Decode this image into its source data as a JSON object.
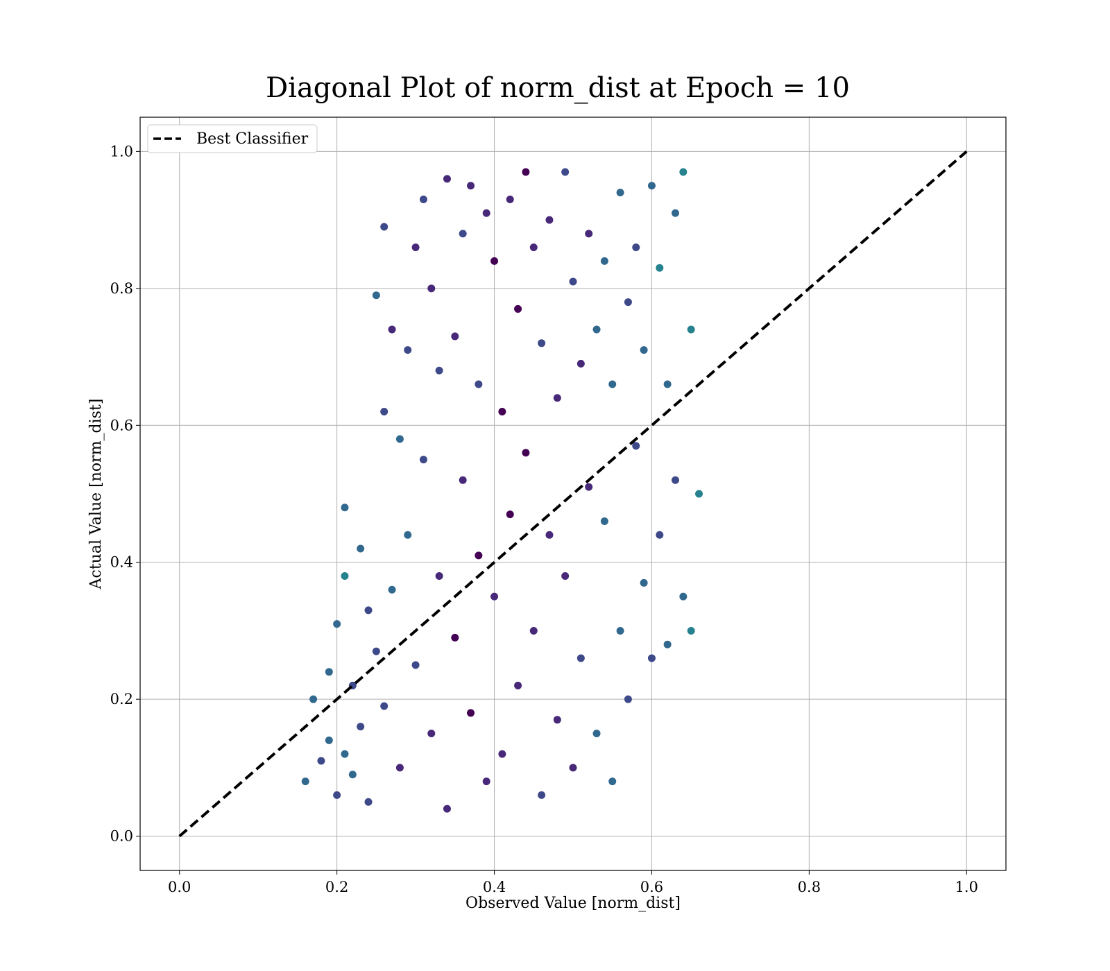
{
  "chart_data": {
    "type": "scatter",
    "title": "Diagonal Plot of norm_dist at Epoch = 10",
    "xlabel": "Observed Value [norm_dist]",
    "ylabel": "Actual Value [norm_dist]",
    "xlim": [
      -0.05,
      1.05
    ],
    "ylim": [
      -0.05,
      1.05
    ],
    "xticks": [
      "0.0",
      "0.2",
      "0.4",
      "0.6",
      "0.8",
      "1.0"
    ],
    "yticks": [
      "0.0",
      "0.2",
      "0.4",
      "0.6",
      "0.8",
      "1.0"
    ],
    "xtick_values": [
      0.0,
      0.2,
      0.4,
      0.6,
      0.8,
      1.0
    ],
    "ytick_values": [
      0.0,
      0.2,
      0.4,
      0.6,
      0.8,
      1.0
    ],
    "grid": true,
    "legend": {
      "placement": "top-left",
      "entries": [
        {
          "label": "Best Classifier",
          "style": "dashed",
          "color": "#000000"
        }
      ]
    },
    "reference_line": {
      "name": "Best Classifier",
      "x": [
        0.0,
        1.0
      ],
      "y": [
        0.0,
        1.0
      ],
      "style": "dashed",
      "color": "#000000"
    },
    "colormap": "viridis",
    "color_palette": [
      "#440154",
      "#482878",
      "#3e4989",
      "#31688e",
      "#26828e",
      "#1f9e89",
      "#35b779",
      "#6ece58",
      "#b5de2b",
      "#fde725"
    ],
    "series": [
      {
        "x": [
          0.16,
          0.17,
          0.18,
          0.19,
          0.19,
          0.2,
          0.2,
          0.21,
          0.21,
          0.21,
          0.22,
          0.22,
          0.23,
          0.23,
          0.24,
          0.24,
          0.25,
          0.25,
          0.26,
          0.26,
          0.26,
          0.27,
          0.27,
          0.28,
          0.28,
          0.29,
          0.29,
          0.3,
          0.3,
          0.31,
          0.31,
          0.32,
          0.32,
          0.33,
          0.33,
          0.34,
          0.34,
          0.35,
          0.35,
          0.36,
          0.36,
          0.37,
          0.37,
          0.38,
          0.38,
          0.39,
          0.39,
          0.4,
          0.4,
          0.41,
          0.41,
          0.42,
          0.42,
          0.43,
          0.43,
          0.44,
          0.44,
          0.45,
          0.45,
          0.46,
          0.46,
          0.47,
          0.47,
          0.48,
          0.48,
          0.49,
          0.49,
          0.5,
          0.5,
          0.51,
          0.51,
          0.52,
          0.52,
          0.53,
          0.53,
          0.54,
          0.54,
          0.55,
          0.55,
          0.56,
          0.56,
          0.57,
          0.57,
          0.58,
          0.58,
          0.59,
          0.59,
          0.6,
          0.6,
          0.61,
          0.61,
          0.62,
          0.62,
          0.63,
          0.63,
          0.64,
          0.64,
          0.65,
          0.65,
          0.66
        ],
        "y": [
          0.08,
          0.2,
          0.11,
          0.24,
          0.14,
          0.31,
          0.06,
          0.38,
          0.12,
          0.48,
          0.22,
          0.09,
          0.42,
          0.16,
          0.33,
          0.05,
          0.79,
          0.27,
          0.89,
          0.62,
          0.19,
          0.74,
          0.36,
          0.58,
          0.1,
          0.71,
          0.44,
          0.86,
          0.25,
          0.93,
          0.55,
          0.8,
          0.15,
          0.68,
          0.38,
          0.96,
          0.04,
          0.73,
          0.29,
          0.88,
          0.52,
          0.95,
          0.18,
          0.66,
          0.41,
          0.91,
          0.08,
          0.84,
          0.35,
          0.62,
          0.12,
          0.93,
          0.47,
          0.77,
          0.22,
          0.97,
          0.56,
          0.86,
          0.3,
          0.72,
          0.06,
          0.9,
          0.44,
          0.64,
          0.17,
          0.97,
          0.38,
          0.81,
          0.1,
          0.69,
          0.26,
          0.88,
          0.51,
          0.74,
          0.15,
          0.84,
          0.46,
          0.66,
          0.08,
          0.94,
          0.3,
          0.78,
          0.2,
          0.86,
          0.57,
          0.71,
          0.37,
          0.95,
          0.26,
          0.83,
          0.44,
          0.66,
          0.28,
          0.91,
          0.52,
          0.97,
          0.35,
          0.74,
          0.3,
          0.5
        ]
      }
    ],
    "point_count_note": "dense cloud"
  }
}
